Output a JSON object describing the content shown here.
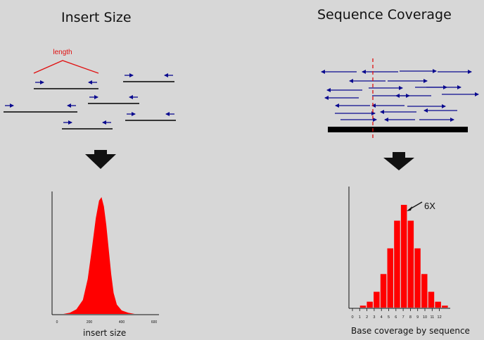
{
  "titles": {
    "left": "Insert Size",
    "right": "Sequence Coverage"
  },
  "insert_diagram": {
    "length_label": "length",
    "colors": {
      "read": "#0b0b8f",
      "fragment": "#000000",
      "length": "#e01010"
    }
  },
  "coverage_diagram": {
    "colors": {
      "read": "#0b0b8f",
      "reference": "#000000",
      "position_marker": "#e01010"
    }
  },
  "insert_chart": {
    "xlabel": "insert size",
    "x_ticks": [
      "0",
      "200",
      "400",
      "600"
    ],
    "fill_color": "#ff0000",
    "x_range": [
      0,
      600
    ],
    "density_points": [
      [
        0,
        0
      ],
      [
        40,
        0
      ],
      [
        80,
        0.01
      ],
      [
        120,
        0.04
      ],
      [
        160,
        0.12
      ],
      [
        190,
        0.3
      ],
      [
        215,
        0.55
      ],
      [
        240,
        0.82
      ],
      [
        260,
        0.97
      ],
      [
        275,
        1.0
      ],
      [
        290,
        0.92
      ],
      [
        305,
        0.76
      ],
      [
        320,
        0.55
      ],
      [
        335,
        0.34
      ],
      [
        350,
        0.18
      ],
      [
        370,
        0.08
      ],
      [
        400,
        0.03
      ],
      [
        440,
        0.01
      ],
      [
        480,
        0
      ],
      [
        600,
        0
      ]
    ]
  },
  "coverage_chart": {
    "xlabel": "Base coverage by sequence",
    "annotation": "6X",
    "x_ticks": [
      "0",
      "1",
      "2",
      "3",
      "4",
      "5",
      "6",
      "7",
      "8",
      "9",
      "10",
      "11",
      "12"
    ],
    "bar_color": "#ff0000",
    "type": "bar",
    "values": [
      0,
      1,
      3,
      8,
      17,
      30,
      44,
      52,
      44,
      30,
      17,
      8,
      3,
      1
    ]
  }
}
